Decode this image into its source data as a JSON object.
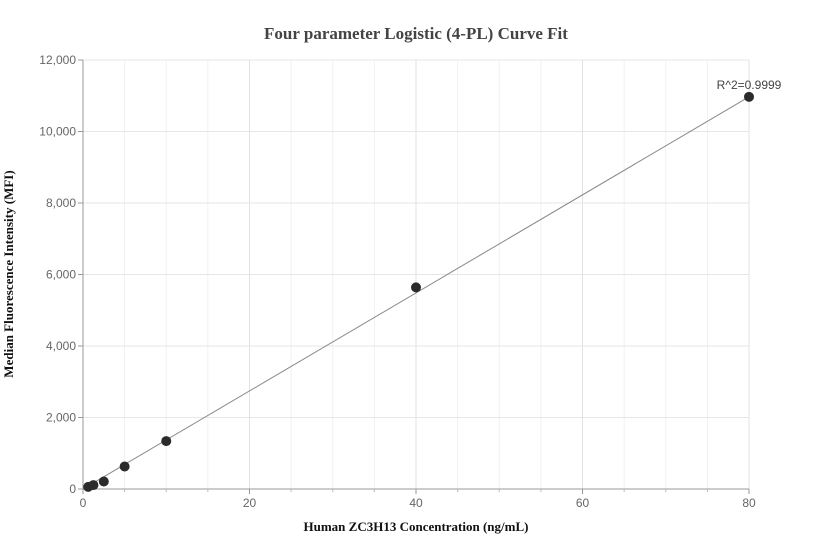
{
  "chart_data": {
    "type": "scatter",
    "title": "Four parameter Logistic (4-PL) Curve Fit",
    "xlabel": "Human ZC3H13 Concentration (ng/mL)",
    "ylabel": "Median Fluorescence Intensity (MFI)",
    "xlim": [
      0,
      80
    ],
    "ylim": [
      0,
      12000
    ],
    "x_ticks": [
      "0",
      "20",
      "40",
      "60",
      "80"
    ],
    "y_ticks": [
      "0",
      "2,000",
      "4,000",
      "6,000",
      "8,000",
      "10,000",
      "12,000"
    ],
    "grid": true,
    "annotation": "R^2=0.9999",
    "points": [
      {
        "x": 0.625,
        "y": 60
      },
      {
        "x": 1.25,
        "y": 110
      },
      {
        "x": 2.5,
        "y": 210
      },
      {
        "x": 5,
        "y": 630
      },
      {
        "x": 10,
        "y": 1340
      },
      {
        "x": 40,
        "y": 5640
      },
      {
        "x": 80,
        "y": 10970
      }
    ],
    "fit_curve": [
      {
        "x": 0,
        "y": 0
      },
      {
        "x": 80,
        "y": 10970
      }
    ],
    "colors": {
      "points": "#2b2b2b",
      "curve": "#888888",
      "grid": "#e6e6e6",
      "axis": "#999999"
    }
  }
}
